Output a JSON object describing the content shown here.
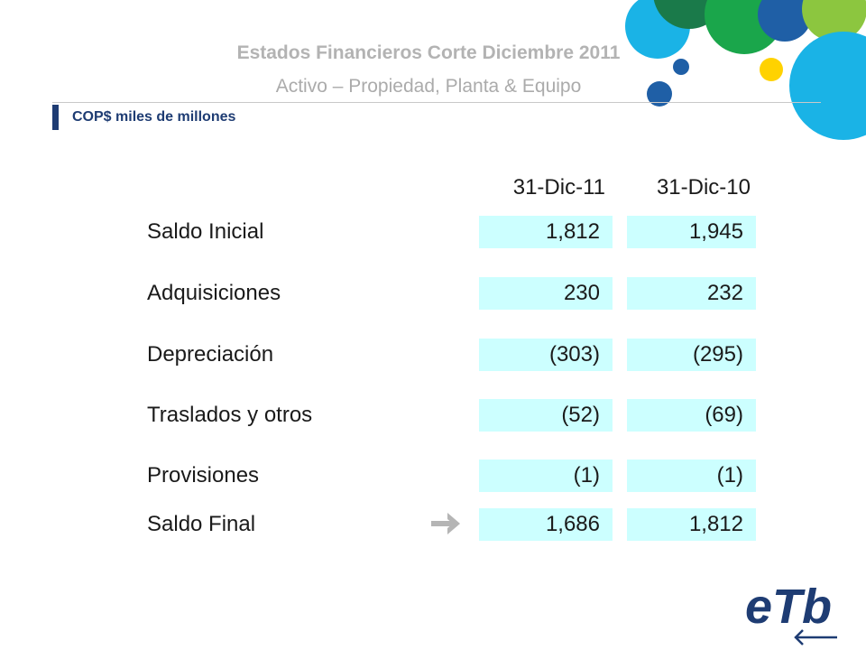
{
  "header": {
    "title": "Estados Financieros Corte Diciembre 2011",
    "subtitle": "Activo – Propiedad, Planta & Equipo",
    "units": "COP$ miles de millones"
  },
  "table": {
    "columns": [
      "31-Dic-11",
      "31-Dic-10"
    ],
    "rows": [
      {
        "label": "Saldo Inicial",
        "values": [
          "1,812",
          "1,945"
        ]
      },
      {
        "label": "Adquisiciones",
        "values": [
          "230",
          "232"
        ]
      },
      {
        "label": "Depreciación",
        "values": [
          "(303)",
          "(295)"
        ]
      },
      {
        "label": "Traslados y otros",
        "values": [
          "(52)",
          "(69)"
        ]
      },
      {
        "label": "Provisiones",
        "values": [
          "(1)",
          "(1)"
        ]
      },
      {
        "label": "Saldo Final",
        "values": [
          "1,686",
          "1,812"
        ]
      }
    ]
  },
  "colors": {
    "cell_fill": "#ccffff",
    "accent_navy": "#1e3c73",
    "circle_light_blue": "#1ab3e6",
    "circle_green": "#1aa64b",
    "circle_lime": "#8cc63f",
    "circle_dark_blue": "#1f5fa6",
    "circle_yellow": "#ffd200"
  },
  "icons": {
    "arrow": "right-arrow-icon",
    "logo": "etb-logo"
  },
  "logo": {
    "text": "eTb"
  }
}
